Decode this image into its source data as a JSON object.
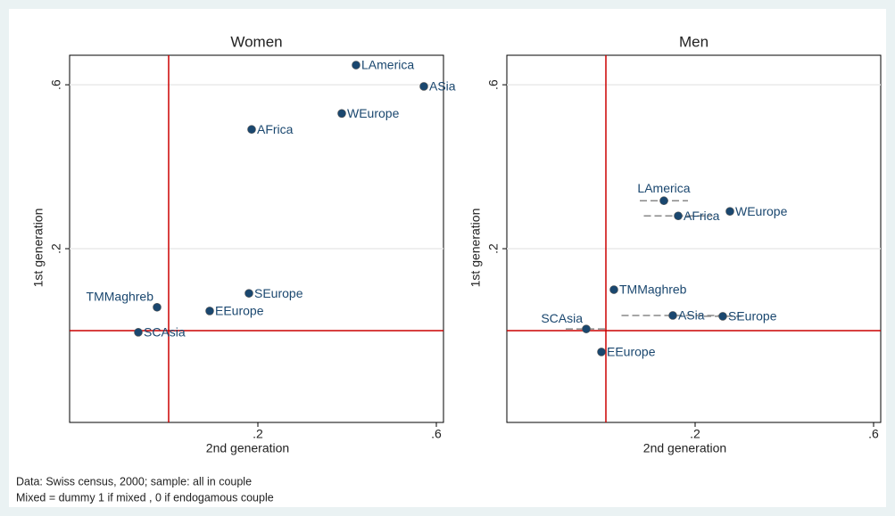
{
  "chart_data": [
    {
      "type": "scatter",
      "title": "Women",
      "xlabel": "2nd generation",
      "ylabel": "1st generation",
      "labels": [
        "LAmerica",
        "ASia",
        "WEurope",
        "AFrica",
        "SEurope",
        "EEurope",
        "TMMaghreb",
        "SCAsia"
      ],
      "x": [
        0.42,
        0.572,
        0.388,
        0.186,
        0.18,
        0.092,
        -0.026,
        -0.068
      ],
      "y": [
        0.648,
        0.596,
        0.53,
        0.491,
        0.091,
        0.048,
        0.057,
        -0.004
      ],
      "label_positions": [
        3,
        3,
        3,
        3,
        3,
        3,
        11,
        3
      ],
      "color": "#1a476f",
      "refline_color": "#cc0000",
      "xline": 0,
      "yline": 0,
      "xlim": [
        -0.222,
        0.616
      ],
      "ylim": [
        -0.224,
        0.672
      ],
      "xticks": [
        {
          "value": 0.2,
          "label": ".2"
        },
        {
          "value": 0.6,
          "label": ".6"
        }
      ],
      "yticks": [
        {
          "value": 0.2,
          "label": ".2"
        },
        {
          "value": 0.6,
          "label": ".6"
        }
      ],
      "grid": true
    },
    {
      "type": "scatter",
      "title": "Men",
      "xlabel": "2nd generation",
      "ylabel": "1st generation",
      "labels": [
        "LAmerica",
        "AFrica",
        "WEurope",
        "TMMaghreb",
        "ASia",
        "SEurope",
        "SCAsia",
        "EEurope"
      ],
      "x": [
        0.13,
        0.162,
        0.278,
        0.018,
        0.15,
        0.262,
        -0.044,
        -0.01
      ],
      "y": [
        0.317,
        0.28,
        0.291,
        0.1,
        0.037,
        0.035,
        0.004,
        -0.052
      ],
      "xerr": [
        0.054,
        0.077,
        null,
        null,
        0.115,
        0.042,
        0.046,
        null
      ],
      "label_positions": [
        12,
        3,
        3,
        3,
        3,
        3,
        11,
        3
      ],
      "color": "#1a476f",
      "refline_color": "#cc0000",
      "xline": 0,
      "yline": 0,
      "xlim": [
        -0.222,
        0.616
      ],
      "ylim": [
        -0.224,
        0.672
      ],
      "xticks": [
        {
          "value": 0.2,
          "label": ".2"
        },
        {
          "value": 0.6,
          "label": ".6"
        }
      ],
      "yticks": [
        {
          "value": 0.2,
          "label": ".2"
        },
        {
          "value": 0.6,
          "label": ".6"
        }
      ],
      "grid": true
    }
  ],
  "notes": [
    "Data: Swiss census, 2000; sample: all in couple",
    "Mixed = dummy 1 if mixed , 0 if endogamous couple"
  ]
}
